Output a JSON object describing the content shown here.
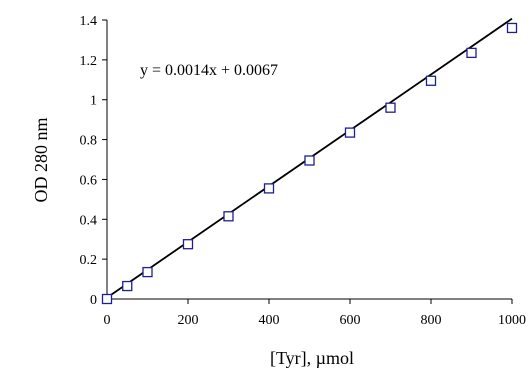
{
  "chart_data": {
    "type": "scatter",
    "title": "",
    "xlabel": "[Tyr], µmol",
    "ylabel": "OD 280 nm",
    "xlim": [
      0,
      1000
    ],
    "ylim": [
      0,
      1.4
    ],
    "x_ticks": [
      0,
      200,
      400,
      600,
      800,
      1000
    ],
    "y_ticks": [
      0,
      0.2,
      0.4,
      0.6,
      0.8,
      1,
      1.2,
      1.4
    ],
    "x_tick_labels": [
      "0",
      "200",
      "400",
      "600",
      "800",
      "1000"
    ],
    "y_tick_labels": [
      "0",
      "0.2",
      "0.4",
      "0.6",
      "0.8",
      "1",
      "1.2",
      "1.4"
    ],
    "grid": false,
    "legend": "none",
    "series": [
      {
        "marker": "open-square",
        "color": "#1f1f8f",
        "x": [
          0,
          50,
          100,
          200,
          300,
          400,
          500,
          600,
          700,
          800,
          900,
          1000
        ],
        "y": [
          0.0,
          0.065,
          0.135,
          0.275,
          0.415,
          0.555,
          0.695,
          0.835,
          0.96,
          1.095,
          1.235,
          1.36
        ]
      }
    ],
    "trendline": {
      "slope": 0.0014,
      "intercept": 0.0067,
      "color": "#000000",
      "equation": "y = 0.0014x + 0.0067"
    }
  }
}
